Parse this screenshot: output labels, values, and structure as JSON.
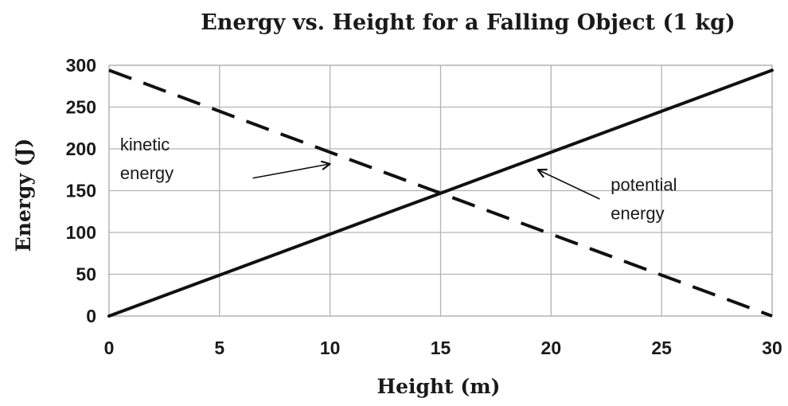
{
  "chart_data": {
    "type": "line",
    "title": "Energy vs. Height for a Falling Object (1 kg)",
    "xlabel": "Height (m)",
    "ylabel": "Energy (J)",
    "xlim": [
      0,
      30
    ],
    "ylim": [
      0,
      300
    ],
    "xticks": [
      0,
      5,
      10,
      15,
      20,
      25,
      30
    ],
    "yticks": [
      0,
      50,
      100,
      150,
      200,
      250,
      300
    ],
    "grid": true,
    "legend": "none",
    "series": [
      {
        "name": "kinetic energy",
        "style": "dashed",
        "color": "#111111",
        "x": [
          0,
          5,
          10,
          15,
          20,
          25,
          30
        ],
        "y": [
          294,
          245,
          196,
          147,
          98,
          49,
          0
        ]
      },
      {
        "name": "potential energy",
        "style": "solid",
        "color": "#111111",
        "x": [
          0,
          5,
          10,
          15,
          20,
          25,
          30
        ],
        "y": [
          0,
          49,
          98,
          147,
          196,
          245,
          294
        ]
      }
    ],
    "annotations": [
      {
        "lines": [
          "kinetic",
          "energy"
        ],
        "series": "kinetic energy",
        "text_at": [
          0.5,
          198
        ],
        "arrow_from": [
          6.5,
          165
        ],
        "arrow_to": [
          10,
          182
        ]
      },
      {
        "lines": [
          "potential",
          "energy"
        ],
        "series": "potential energy",
        "text_at": [
          22.7,
          150
        ],
        "arrow_from": [
          22.2,
          140
        ],
        "arrow_to": [
          19.4,
          175
        ]
      }
    ]
  }
}
